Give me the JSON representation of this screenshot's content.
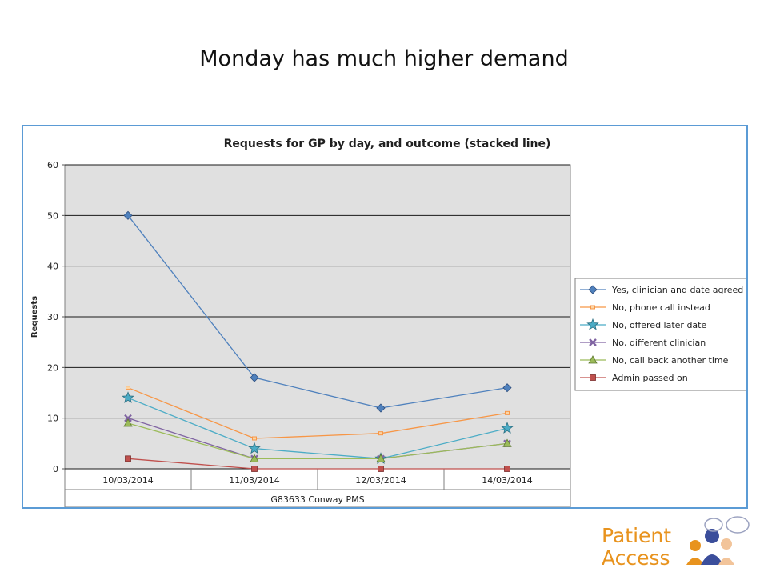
{
  "slide": {
    "title": "Monday has much higher demand"
  },
  "logo": {
    "line1": "Patient",
    "line2": "Access",
    "brand_color": "#e8931e",
    "accent_color": "#3b4e9b"
  },
  "chart_data": {
    "type": "line",
    "title": "Requests for GP by day, and outcome (stacked line)",
    "ylabel": "Requests",
    "xlabel": "G83633 Conway PMS",
    "categories": [
      "10/03/2014",
      "11/03/2014",
      "12/03/2014",
      "14/03/2014"
    ],
    "ylim": [
      0,
      60
    ],
    "yticks": [
      0,
      10,
      20,
      30,
      40,
      50,
      60
    ],
    "grid": true,
    "legend_position": "right",
    "series": [
      {
        "name": "Yes, clinician and date agreed",
        "values": [
          50,
          18,
          12,
          16
        ],
        "color": "#4f81bd",
        "marker": "diamond"
      },
      {
        "name": "No, phone call instead",
        "values": [
          16,
          6,
          7,
          11
        ],
        "color": "#f79646",
        "marker": "square-small"
      },
      {
        "name": "No, offered later date",
        "values": [
          14,
          4,
          2,
          8
        ],
        "color": "#4bacc6",
        "marker": "star"
      },
      {
        "name": "No, different clinician",
        "values": [
          10,
          2,
          2,
          5
        ],
        "color": "#8064a2",
        "marker": "x"
      },
      {
        "name": "No, call back another time",
        "values": [
          9,
          2,
          2,
          5
        ],
        "color": "#9bbb59",
        "marker": "triangle"
      },
      {
        "name": "Admin passed on",
        "values": [
          2,
          0,
          0,
          0
        ],
        "color": "#c0504d",
        "marker": "square"
      }
    ]
  }
}
